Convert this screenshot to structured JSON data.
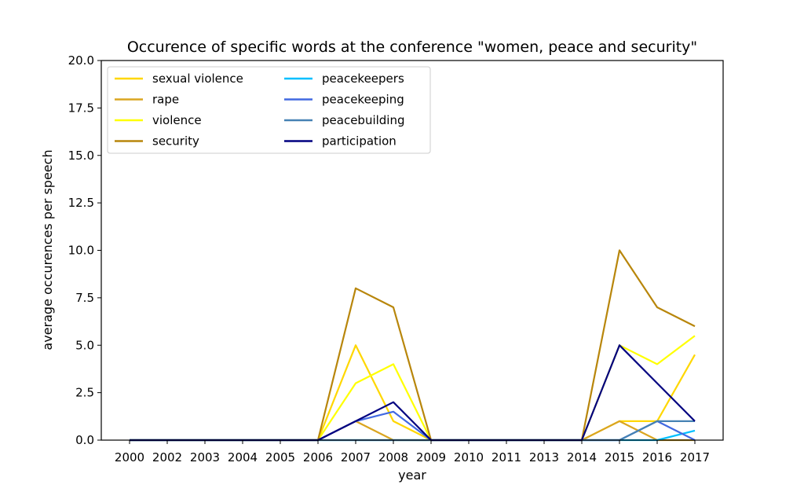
{
  "chart_data": {
    "type": "line",
    "title": "Occurence of specific words at the conference \"women, peace and security\"",
    "xlabel": "year",
    "ylabel": "average occurences per speech",
    "ylim": [
      0,
      20
    ],
    "yticks": [
      "0.0",
      "2.5",
      "5.0",
      "7.5",
      "10.0",
      "12.5",
      "15.0",
      "17.5",
      "20.0"
    ],
    "categories": [
      "2000",
      "2002",
      "2003",
      "2004",
      "2005",
      "2006",
      "2007",
      "2008",
      "2009",
      "2010",
      "2011",
      "2013",
      "2014",
      "2015",
      "2016",
      "2017"
    ],
    "grid": false,
    "legend_position": "top-left",
    "series": [
      {
        "name": "sexual violence",
        "color": "#FFD700",
        "values": [
          0,
          0,
          0,
          0,
          0,
          0,
          5,
          1,
          0,
          0,
          0,
          0,
          0,
          1,
          1,
          4.5
        ]
      },
      {
        "name": "rape",
        "color": "#DAA520",
        "values": [
          0,
          0,
          0,
          0,
          0,
          0,
          1,
          0,
          0,
          0,
          0,
          0,
          0,
          1,
          0,
          0
        ]
      },
      {
        "name": "violence",
        "color": "#FFFF00",
        "values": [
          0,
          0,
          0,
          0,
          0,
          0,
          3,
          4,
          0,
          0,
          0,
          0,
          0,
          5,
          4,
          5.5
        ]
      },
      {
        "name": "security",
        "color": "#B8860B",
        "values": [
          0,
          0,
          0,
          0,
          0,
          0,
          8,
          7,
          0,
          0,
          0,
          0,
          0,
          10,
          7,
          6
        ]
      },
      {
        "name": "peacekeepers",
        "color": "#00BFFF",
        "values": [
          0,
          0,
          0,
          0,
          0,
          0,
          0,
          0,
          0,
          0,
          0,
          0,
          0,
          0,
          0,
          0.5
        ]
      },
      {
        "name": "peacekeeping",
        "color": "#4169E1",
        "values": [
          0,
          0,
          0,
          0,
          0,
          0,
          1,
          1.5,
          0,
          0,
          0,
          0,
          0,
          0,
          1,
          0
        ]
      },
      {
        "name": "peacebuilding",
        "color": "#4682B4",
        "values": [
          0,
          0,
          0,
          0,
          0,
          0,
          0,
          0,
          0,
          0,
          0,
          0,
          0,
          0,
          1,
          1
        ]
      },
      {
        "name": "participation",
        "color": "#000080",
        "values": [
          0,
          0,
          0,
          0,
          0,
          0,
          1,
          2,
          0,
          0,
          0,
          0,
          0,
          5,
          3,
          1
        ]
      }
    ]
  }
}
